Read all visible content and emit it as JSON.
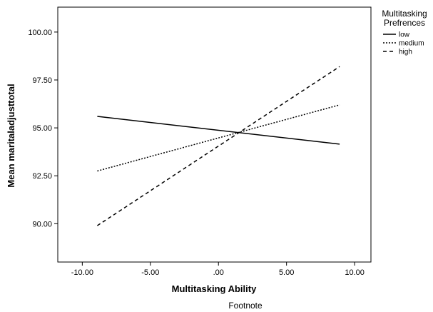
{
  "chart_data": {
    "type": "line",
    "xlabel": "Multitasking Ability",
    "ylabel": "Mean maritaladjusttotal",
    "footnote": "Footnote",
    "xlim": [
      -11.8,
      11.2
    ],
    "ylim": [
      88.0,
      101.3
    ],
    "x_ticks": [
      -10,
      -5,
      0,
      5,
      10
    ],
    "x_tick_labels": [
      "-10.00",
      "-5.00",
      ".00",
      "5.00",
      "10.00"
    ],
    "y_ticks": [
      90,
      92.5,
      95,
      97.5,
      100
    ],
    "y_tick_labels": [
      "90.00",
      "92.50",
      "95.00",
      "97.50",
      "100.00"
    ],
    "legend": {
      "title_lines": [
        "Multitasking",
        "Prefrences"
      ],
      "placement": "right-outside"
    },
    "series": [
      {
        "name": "low",
        "style": "solid",
        "x": [
          -8.9,
          8.9
        ],
        "y": [
          95.6,
          94.15
        ]
      },
      {
        "name": "medium",
        "style": "dotted",
        "x": [
          -8.9,
          8.9
        ],
        "y": [
          92.75,
          96.2
        ]
      },
      {
        "name": "high",
        "style": "dashed",
        "x": [
          -8.9,
          8.9
        ],
        "y": [
          89.9,
          98.2
        ]
      }
    ]
  }
}
